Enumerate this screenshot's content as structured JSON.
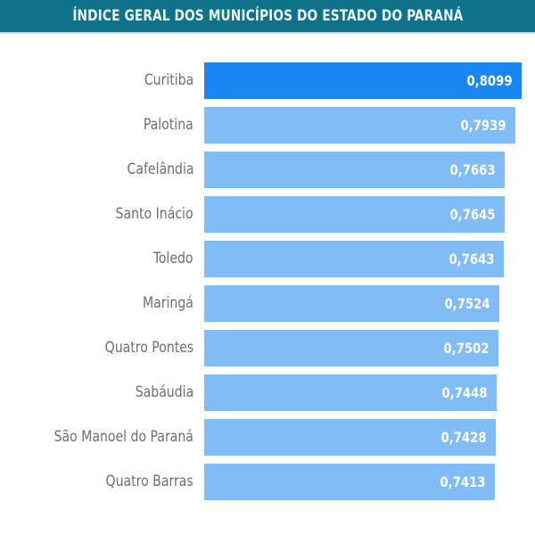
{
  "header": {
    "title": "ÍNDICE GERAL DOS MUNICÍPIOS DO ESTADO DO PARANÁ"
  },
  "colors": {
    "header_bg": "#10718a",
    "highlight_bar": "#1a86f2",
    "bar": "#80bcf6",
    "label": "#6e6e6e",
    "value_text": "#ffffff"
  },
  "rows": [
    {
      "label": "Curitiba",
      "value": "0,8099",
      "highlight": true
    },
    {
      "label": "Palotina",
      "value": "0,7939"
    },
    {
      "label": "Cafelândia",
      "value": "0,7663"
    },
    {
      "label": "Santo Inácio",
      "value": "0,7645"
    },
    {
      "label": "Toledo",
      "value": "0,7643"
    },
    {
      "label": "Maringá",
      "value": "0,7524"
    },
    {
      "label": "Quatro Pontes",
      "value": "0,7502"
    },
    {
      "label": "Sabáudia",
      "value": "0,7448"
    },
    {
      "label": "São Manoel do Paraná",
      "value": "0,7428"
    },
    {
      "label": "Quatro Barras",
      "value": "0,7413"
    }
  ],
  "chart_data": {
    "type": "bar",
    "orientation": "horizontal",
    "title": "ÍNDICE GERAL DOS MUNICÍPIOS DO ESTADO DO PARANÁ",
    "categories": [
      "Curitiba",
      "Palotina",
      "Cafelândia",
      "Santo Inácio",
      "Toledo",
      "Maringá",
      "Quatro Pontes",
      "Sabáudia",
      "São Manoel do Paraná",
      "Quatro Barras"
    ],
    "values": [
      0.8099,
      0.7939,
      0.7663,
      0.7645,
      0.7643,
      0.7524,
      0.7502,
      0.7448,
      0.7428,
      0.7413
    ],
    "value_labels": [
      "0,8099",
      "0,7939",
      "0,7663",
      "0,7645",
      "0,7643",
      "0,7524",
      "0,7502",
      "0,7448",
      "0,7428",
      "0,7413"
    ],
    "highlighted": "Curitiba",
    "xlabel": "",
    "ylabel": "",
    "grid": false,
    "legend": false
  }
}
